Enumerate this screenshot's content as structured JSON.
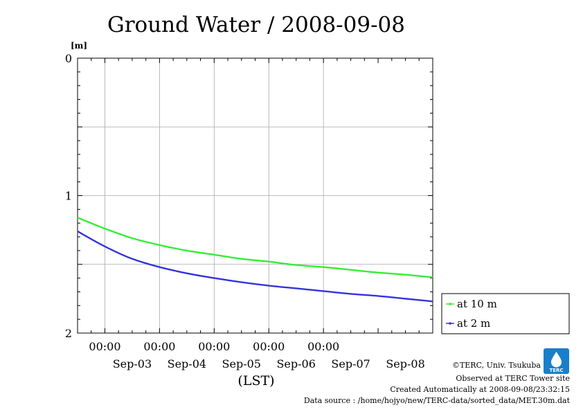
{
  "chart_data": {
    "type": "line",
    "title": "Ground Water / 2008-09-08",
    "y_unit": "[m]",
    "ylim": [
      0,
      2
    ],
    "y_inverted": true,
    "y_ticks": [
      "0",
      "1",
      "2"
    ],
    "x_range": [
      "2008-09-02 12:00",
      "2008-09-08 24:00"
    ],
    "x_time_ticks": [
      {
        "x": "2008-09-03 00:00",
        "label": "00:00"
      },
      {
        "x": "2008-09-04 00:00",
        "label": "00:00"
      },
      {
        "x": "2008-09-05 00:00",
        "label": "00:00"
      },
      {
        "x": "2008-09-06 00:00",
        "label": "00:00"
      },
      {
        "x": "2008-09-07 00:00",
        "label": "00:00"
      }
    ],
    "x_day_labels": [
      {
        "x": "2008-09-03 12:00",
        "label": "Sep-03"
      },
      {
        "x": "2008-09-04 12:00",
        "label": "Sep-04"
      },
      {
        "x": "2008-09-05 12:00",
        "label": "Sep-05"
      },
      {
        "x": "2008-09-06 12:00",
        "label": "Sep-06"
      },
      {
        "x": "2008-09-07 12:00",
        "label": "Sep-07"
      },
      {
        "x": "2008-09-08 12:00",
        "label": "Sep-08"
      }
    ],
    "xlabel": "(LST)",
    "grid": true,
    "legend_position": "right",
    "series": [
      {
        "name": "at 10 m",
        "color": "#33ee33",
        "x": [
          "2008-09-02 12:00",
          "2008-09-03 00:00",
          "2008-09-03 12:00",
          "2008-09-04 00:00",
          "2008-09-04 12:00",
          "2008-09-05 00:00",
          "2008-09-05 12:00",
          "2008-09-06 00:00",
          "2008-09-06 12:00",
          "2008-09-07 00:00",
          "2008-09-07 12:00",
          "2008-09-08 00:00",
          "2008-09-08 12:00",
          "2008-09-08 24:00"
        ],
        "y": [
          1.16,
          1.24,
          1.31,
          1.36,
          1.4,
          1.43,
          1.46,
          1.48,
          1.505,
          1.52,
          1.54,
          1.56,
          1.575,
          1.595
        ]
      },
      {
        "name": "at 2 m",
        "color": "#3333dd",
        "x": [
          "2008-09-02 12:00",
          "2008-09-03 00:00",
          "2008-09-03 12:00",
          "2008-09-04 00:00",
          "2008-09-04 12:00",
          "2008-09-05 00:00",
          "2008-09-05 12:00",
          "2008-09-06 00:00",
          "2008-09-06 12:00",
          "2008-09-07 00:00",
          "2008-09-07 12:00",
          "2008-09-08 00:00",
          "2008-09-08 12:00",
          "2008-09-08 24:00"
        ],
        "y": [
          1.26,
          1.37,
          1.46,
          1.52,
          1.565,
          1.6,
          1.63,
          1.655,
          1.675,
          1.695,
          1.715,
          1.73,
          1.75,
          1.77
        ]
      }
    ]
  },
  "footer": {
    "copyright": "©TERC, Univ. Tsukuba",
    "observed": "Observed at TERC Tower site",
    "created": "Created Automatically at 2008-09-08/23:32:15",
    "source": "Data source : /home/hojyo/new/TERC-data/sorted_data/MET.30m.dat"
  },
  "logo": {
    "text": "TERC",
    "color": "#1a7fc9"
  }
}
